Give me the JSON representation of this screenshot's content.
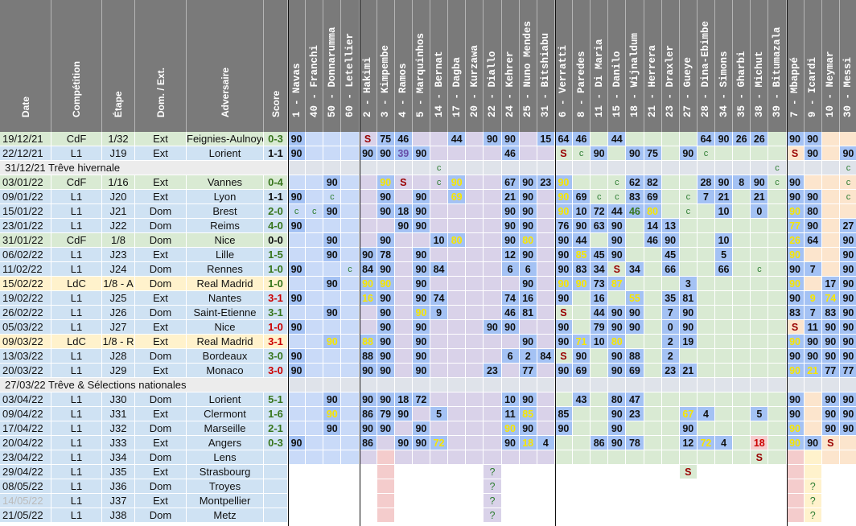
{
  "headers": {
    "info": [
      "Date",
      "Compétition",
      "Étape",
      "Dom. / Ext.",
      "Adversaire",
      "Score"
    ],
    "players": [
      "1 - Navas",
      "40 - Franchi",
      "50 - Donnarumma",
      "60 - Letellier",
      "2 - Hakimi",
      "3 - Kimpembe",
      "4 - Ramos",
      "5 - Marquinhos",
      "14 - Bernat",
      "17 - Dagba",
      "20 - Kurzawa",
      "22 - Diallo",
      "24 - Kehrer",
      "25 - Nuno Mendes",
      "31 - Bitshiabu",
      "6 - Verratti",
      "8 - Paredes",
      "11 - Di Maria",
      "15 - Danilo",
      "18 - Wijnaldum",
      "21 - Herrera",
      "23 - Draxler",
      "27 - Gueye",
      "28 - Dina-Ebimbe",
      "34 - Simons",
      "35 - Gharbi",
      "38 - Michut",
      "39 - Bitumazala",
      "7 - Mbappé",
      "9 - Icardi",
      "10 - Neymar",
      "30 - Messi"
    ]
  },
  "colors": {
    "header_bg": "#7a7a7a",
    "row_cdf": "#d9ead3",
    "row_l1": "#cfe2f3",
    "row_ldc": "#fff2cc",
    "row_break": "#ececec",
    "gk": "#c9daf8",
    "def": "#d9d2e9",
    "mid": "#d9ead3",
    "fwd": "#fce5cd",
    "played": "#a4c2f4",
    "dark_green": "#38761d",
    "red": "#cc0000",
    "purple": "#674ea7",
    "yellow": "#ffeb3b",
    "maroon": "#990000"
  },
  "rows": [
    {
      "type": "match",
      "date": "19/12/21",
      "comp": "CdF",
      "stage": "1/32",
      "venue": "Ext",
      "opp": "Feignies-Aulnoye",
      "score": "0-3",
      "score_color": "#38761d",
      "cells": {
        "0": "90",
        "4": "S",
        "5": "75",
        "6": "46",
        "9": "44",
        "11": "90",
        "12": "90",
        "14": "15",
        "15": "64",
        "16": "46",
        "18": "44",
        "23": "64",
        "24": "90",
        "25": "26",
        "26": "26",
        "28": "90",
        "29": "90"
      }
    },
    {
      "type": "match",
      "date": "22/12/21",
      "comp": "L1",
      "stage": "J19",
      "venue": "Ext",
      "opp": "Lorient",
      "score": "1-1",
      "score_color": "#111111",
      "cells": {
        "0": "90",
        "4": "90",
        "5": "90",
        "6": "39",
        "7": "90",
        "12": "46",
        "15": "S",
        "16": "C",
        "17": "90",
        "19": "90",
        "20": "75",
        "22": "90",
        "23": "C",
        "28": "S",
        "29": "90",
        "31": "90"
      }
    },
    {
      "type": "break",
      "label": "31/12/21  Trêve hivernale",
      "cells": {
        "8": "C",
        "27": "C",
        "31": "C"
      }
    },
    {
      "type": "match",
      "date": "03/01/22",
      "comp": "CdF",
      "stage": "1/16",
      "venue": "Ext",
      "opp": "Vannes",
      "score": "0-4",
      "score_color": "#38761d",
      "cells": {
        "2": "90",
        "5": "90",
        "6": "S",
        "8": "C",
        "9": "90",
        "12": "67",
        "13": "90",
        "14": "23",
        "15": "90",
        "18": "C",
        "19": "62",
        "20": "82",
        "23": "28",
        "24": "90",
        "25": "8",
        "26": "90",
        "27": "C",
        "28": "90",
        "31": "C"
      }
    },
    {
      "type": "match",
      "date": "09/01/22",
      "comp": "L1",
      "stage": "J20",
      "venue": "Ext",
      "opp": "Lyon",
      "score": "1-1",
      "score_color": "#111111",
      "cells": {
        "0": "90",
        "2": "C",
        "5": "90",
        "7": "90",
        "9": "69",
        "12": "21",
        "13": "90",
        "15": "90",
        "16": "69",
        "17": "C",
        "18": "C",
        "19": "83",
        "20": "69",
        "22": "C",
        "23": "7",
        "24": "21",
        "26": "21",
        "28": "90",
        "29": "90",
        "31": "C"
      }
    },
    {
      "type": "match",
      "date": "15/01/22",
      "comp": "L1",
      "stage": "J21",
      "venue": "Dom",
      "opp": "Brest",
      "score": "2-0",
      "score_color": "#38761d",
      "cells": {
        "0": "C",
        "1": "C",
        "2": "90",
        "5": "90",
        "6": "18",
        "7": "90",
        "12": "90",
        "13": "90",
        "15": "90",
        "16": "10",
        "17": "72",
        "18": "44",
        "19": "46",
        "20": "80",
        "22": "C",
        "24": "10",
        "26": "0",
        "28": "90",
        "29": "80"
      }
    },
    {
      "type": "match",
      "date": "23/01/22",
      "comp": "L1",
      "stage": "J22",
      "venue": "Dom",
      "opp": "Reims",
      "score": "4-0",
      "score_color": "#38761d",
      "cells": {
        "0": "90",
        "6": "90",
        "7": "90",
        "12": "90",
        "13": "90",
        "15": "76",
        "16": "90",
        "17": "63",
        "18": "90",
        "20": "14",
        "21": "13",
        "28": "77",
        "29": "90",
        "31": "27"
      }
    },
    {
      "type": "match",
      "date": "31/01/22",
      "comp": "CdF",
      "stage": "1/8",
      "venue": "Dom",
      "opp": "Nice",
      "score": "0-0",
      "score_color": "#111111",
      "cells": {
        "2": "90",
        "5": "90",
        "8": "10",
        "9": "80",
        "12": "90",
        "13": "80",
        "15": "90",
        "16": "44",
        "18": "90",
        "20": "46",
        "21": "90",
        "24": "10",
        "28": "26",
        "29": "64",
        "31": "90"
      }
    },
    {
      "type": "match",
      "date": "06/02/22",
      "comp": "L1",
      "stage": "J23",
      "venue": "Ext",
      "opp": "Lille",
      "score": "1-5",
      "score_color": "#38761d",
      "cells": {
        "2": "90",
        "4": "90",
        "5": "78",
        "7": "90",
        "12": "12",
        "13": "90",
        "15": "90",
        "16": "85",
        "17": "45",
        "18": "90",
        "21": "45",
        "24": "5",
        "28": "90",
        "31": "90"
      }
    },
    {
      "type": "match",
      "date": "11/02/22",
      "comp": "L1",
      "stage": "J24",
      "venue": "Dom",
      "opp": "Rennes",
      "score": "1-0",
      "score_color": "#38761d",
      "cells": {
        "0": "90",
        "3": "C",
        "4": "84",
        "5": "90",
        "7": "90",
        "8": "84",
        "12": "6",
        "13": "6",
        "15": "90",
        "16": "83",
        "17": "34",
        "18": "S",
        "19": "34",
        "21": "66",
        "24": "66",
        "26": "C",
        "28": "90",
        "29": "7",
        "31": "90"
      }
    },
    {
      "type": "match",
      "date": "15/02/22",
      "comp": "LdC",
      "stage": "1/8 - A",
      "venue": "Dom",
      "opp": "Real Madrid",
      "score": "1-0",
      "score_color": "#38761d",
      "cells": {
        "2": "90",
        "4": "90",
        "5": "90",
        "7": "90",
        "13": "90",
        "15": "90",
        "16": "90",
        "17": "73",
        "18": "87",
        "22": "3",
        "28": "90",
        "30": "17",
        "31": "90"
      }
    },
    {
      "type": "match",
      "date": "19/02/22",
      "comp": "L1",
      "stage": "J25",
      "venue": "Ext",
      "opp": "Nantes",
      "score": "3-1",
      "score_color": "#cc0000",
      "cells": {
        "0": "90",
        "4": "16",
        "5": "90",
        "7": "90",
        "8": "74",
        "12": "74",
        "13": "16",
        "15": "90",
        "17": "16",
        "19": "55",
        "21": "35",
        "22": "81",
        "28": "90",
        "29": "9",
        "30": "74",
        "31": "90"
      }
    },
    {
      "type": "match",
      "date": "26/02/22",
      "comp": "L1",
      "stage": "J26",
      "venue": "Dom",
      "opp": "Saint-Etienne",
      "score": "3-1",
      "score_color": "#38761d",
      "cells": {
        "2": "90",
        "5": "90",
        "7": "90",
        "8": "9",
        "12": "46",
        "13": "81",
        "15": "S",
        "17": "44",
        "18": "90",
        "19": "90",
        "21": "7",
        "22": "90",
        "28": "83",
        "29": "7",
        "30": "83",
        "31": "90"
      }
    },
    {
      "type": "match",
      "date": "05/03/22",
      "comp": "L1",
      "stage": "J27",
      "venue": "Ext",
      "opp": "Nice",
      "score": "1-0",
      "score_color": "#cc0000",
      "cells": {
        "0": "90",
        "5": "90",
        "7": "90",
        "11": "90",
        "12": "90",
        "15": "90",
        "17": "79",
        "18": "90",
        "19": "90",
        "21": "0",
        "22": "90",
        "28": "S",
        "29": "11",
        "30": "90",
        "31": "90"
      }
    },
    {
      "type": "match",
      "date": "09/03/22",
      "comp": "LdC",
      "stage": "1/8 - R",
      "venue": "Ext",
      "opp": "Real Madrid",
      "score": "3-1",
      "score_color": "#cc0000",
      "cells": {
        "2": "90",
        "4": "88",
        "5": "90",
        "7": "90",
        "13": "90",
        "15": "90",
        "16": "71",
        "17": "10",
        "18": "80",
        "21": "2",
        "22": "19",
        "28": "90",
        "29": "90",
        "30": "90",
        "31": "90"
      }
    },
    {
      "type": "match",
      "date": "13/03/22",
      "comp": "L1",
      "stage": "J28",
      "venue": "Dom",
      "opp": "Bordeaux",
      "score": "3-0",
      "score_color": "#38761d",
      "cells": {
        "0": "90",
        "4": "88",
        "5": "90",
        "7": "90",
        "12": "6",
        "13": "2",
        "14": "84",
        "15": "S",
        "16": "90",
        "18": "90",
        "19": "88",
        "21": "2",
        "28": "90",
        "29": "90",
        "30": "90",
        "31": "90"
      }
    },
    {
      "type": "match",
      "date": "20/03/22",
      "comp": "L1",
      "stage": "J29",
      "venue": "Ext",
      "opp": "Monaco",
      "score": "3-0",
      "score_color": "#cc0000",
      "cells": {
        "0": "90",
        "4": "90",
        "5": "90",
        "7": "90",
        "11": "23",
        "13": "77",
        "15": "90",
        "16": "69",
        "18": "90",
        "19": "69",
        "21": "23",
        "22": "21",
        "28": "90",
        "29": "21",
        "30": "77",
        "31": "77"
      }
    },
    {
      "type": "break",
      "label": "27/03/22  Trêve & Sélections nationales",
      "cells": {}
    },
    {
      "type": "match",
      "date": "03/04/22",
      "comp": "L1",
      "stage": "J30",
      "venue": "Dom",
      "opp": "Lorient",
      "score": "5-1",
      "score_color": "#38761d",
      "cells": {
        "2": "90",
        "4": "90",
        "5": "90",
        "6": "18",
        "7": "72",
        "12": "10",
        "13": "90",
        "16": "43",
        "18": "80",
        "19": "47",
        "28": "90",
        "30": "90",
        "31": "90"
      }
    },
    {
      "type": "match",
      "date": "09/04/22",
      "comp": "L1",
      "stage": "J31",
      "venue": "Ext",
      "opp": "Clermont",
      "score": "1-6",
      "score_color": "#38761d",
      "cells": {
        "2": "90",
        "4": "86",
        "5": "79",
        "6": "90",
        "8": "5",
        "12": "11",
        "13": "85",
        "15": "85",
        "18": "90",
        "19": "23",
        "22": "67",
        "23": "4",
        "26": "5",
        "28": "90",
        "30": "90",
        "31": "90"
      }
    },
    {
      "type": "match",
      "date": "17/04/22",
      "comp": "L1",
      "stage": "J32",
      "venue": "Dom",
      "opp": "Marseille",
      "score": "2-1",
      "score_color": "#38761d",
      "cells": {
        "2": "90",
        "4": "90",
        "5": "90",
        "7": "90",
        "12": "90",
        "13": "90",
        "15": "90",
        "18": "90",
        "22": "90",
        "28": "90",
        "30": "90",
        "31": "90"
      }
    },
    {
      "type": "match",
      "date": "20/04/22",
      "comp": "L1",
      "stage": "J33",
      "venue": "Ext",
      "opp": "Angers",
      "score": "0-3",
      "score_color": "#38761d",
      "cells": {
        "0": "90",
        "4": "86",
        "6": "90",
        "7": "90",
        "8": "72",
        "12": "90",
        "13": "18",
        "14": "4",
        "17": "86",
        "18": "90",
        "19": "78",
        "22": "12",
        "23": "72",
        "24": "4",
        "26": "18",
        "28": "90",
        "29": "90",
        "30": "S"
      }
    },
    {
      "type": "match",
      "date": "23/04/22",
      "comp": "L1",
      "stage": "J34",
      "venue": "Dom",
      "opp": "Lens",
      "score": "",
      "score_color": "#111111",
      "cells": {
        "26": "S"
      }
    },
    {
      "type": "match",
      "date": "29/04/22",
      "comp": "L1",
      "stage": "J35",
      "venue": "Ext",
      "opp": "Strasbourg",
      "score": "",
      "score_color": "#111111",
      "cells": {
        "11": "?",
        "22": "S"
      }
    },
    {
      "type": "match",
      "date": "08/05/22",
      "comp": "L1",
      "stage": "J36",
      "venue": "Dom",
      "opp": "Troyes",
      "score": "",
      "score_color": "#111111",
      "cells": {
        "11": "?",
        "29": "?"
      }
    },
    {
      "type": "match",
      "date": "14/05/22",
      "comp": "L1",
      "stage": "J37",
      "venue": "Ext",
      "opp": "Montpellier",
      "score": "",
      "score_color": "#111111",
      "date_faded": true,
      "cells": {
        "11": "?",
        "29": "?"
      }
    },
    {
      "type": "match",
      "date": "21/05/22",
      "comp": "L1",
      "stage": "J38",
      "venue": "Dom",
      "opp": "Metz",
      "score": "",
      "score_color": "#111111",
      "cells": {
        "11": "?",
        "29": "?"
      }
    }
  ]
}
